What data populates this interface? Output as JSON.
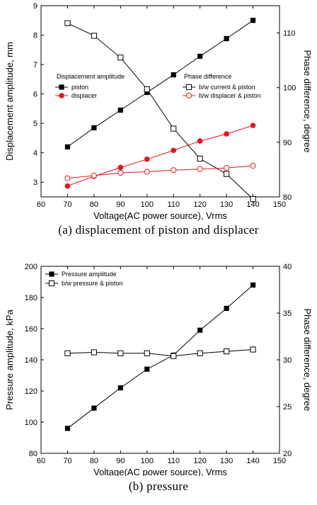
{
  "chart_data": [
    {
      "type": "line",
      "caption": "(a) displacement of piston and displacer",
      "xlabel": "Voltage(AC power source), Vrms",
      "ylabel": "Displacement amplitude, mm",
      "y2label": "Phase difference, degree",
      "xlim": [
        60,
        150
      ],
      "ylim": [
        2.5,
        9
      ],
      "y2lim": [
        80,
        115
      ],
      "x_ticks": [
        60,
        70,
        80,
        90,
        100,
        110,
        120,
        130,
        140,
        150
      ],
      "y_ticks": [
        3,
        4,
        5,
        6,
        7,
        8,
        9
      ],
      "y2_ticks": [
        80,
        90,
        100,
        110
      ],
      "legend_left_title": "Displacement amplitude",
      "legend_right_title": "Phase difference",
      "colors": {
        "black": "#000000",
        "red": "#e8141b"
      },
      "series": [
        {
          "name": "piston",
          "axis": "left",
          "marker": "filled-square",
          "color": "#000000",
          "x": [
            70,
            80,
            90,
            100,
            110,
            120,
            130,
            140
          ],
          "y": [
            4.2,
            4.85,
            5.45,
            6.05,
            6.65,
            7.28,
            7.88,
            8.5
          ]
        },
        {
          "name": "displacer",
          "axis": "left",
          "marker": "filled-circle",
          "color": "#e8141b",
          "x": [
            70,
            80,
            90,
            100,
            110,
            120,
            130,
            140
          ],
          "y": [
            2.87,
            3.2,
            3.5,
            3.78,
            4.08,
            4.4,
            4.64,
            4.93
          ]
        },
        {
          "name": "b/w current & piston",
          "axis": "right",
          "marker": "open-square",
          "color": "#000000",
          "x": [
            70,
            80,
            90,
            100,
            110,
            120,
            130,
            140
          ],
          "y": [
            111.8,
            109.5,
            105.5,
            99.7,
            92.5,
            87.0,
            84.2,
            79.6
          ]
        },
        {
          "name": "b/w displacer & piston",
          "axis": "right",
          "marker": "open-circle",
          "color": "#e8141b",
          "x": [
            70,
            80,
            90,
            100,
            110,
            120,
            130,
            140
          ],
          "y": [
            83.4,
            83.9,
            84.4,
            84.6,
            84.9,
            85.1,
            85.3,
            85.7
          ]
        }
      ]
    },
    {
      "type": "line",
      "caption": "(b) pressure",
      "xlabel": "Voltage(AC power source), Vrms",
      "ylabel": "Pressure amplitude, kPa",
      "y2label": "Phase difference, degree",
      "xlim": [
        60,
        150
      ],
      "ylim": [
        80,
        200
      ],
      "y2lim": [
        20,
        40
      ],
      "x_ticks": [
        60,
        70,
        80,
        90,
        100,
        110,
        120,
        130,
        140,
        150
      ],
      "y_ticks": [
        80,
        100,
        120,
        140,
        160,
        180,
        200
      ],
      "y2_ticks": [
        20,
        25,
        30,
        35,
        40
      ],
      "colors": {
        "black": "#000000"
      },
      "series": [
        {
          "name": "Pressure amplitude",
          "axis": "left",
          "marker": "filled-square",
          "color": "#000000",
          "x": [
            70,
            80,
            90,
            100,
            110,
            120,
            130,
            140
          ],
          "y": [
            96,
            109,
            122,
            134,
            143,
            159,
            173,
            188
          ]
        },
        {
          "name": "b/w pressure & piston",
          "axis": "right",
          "marker": "open-square",
          "color": "#000000",
          "x": [
            70,
            80,
            90,
            100,
            110,
            120,
            130,
            140
          ],
          "y": [
            30.7,
            30.8,
            30.7,
            30.7,
            30.4,
            30.7,
            30.9,
            31.1
          ]
        }
      ]
    }
  ]
}
